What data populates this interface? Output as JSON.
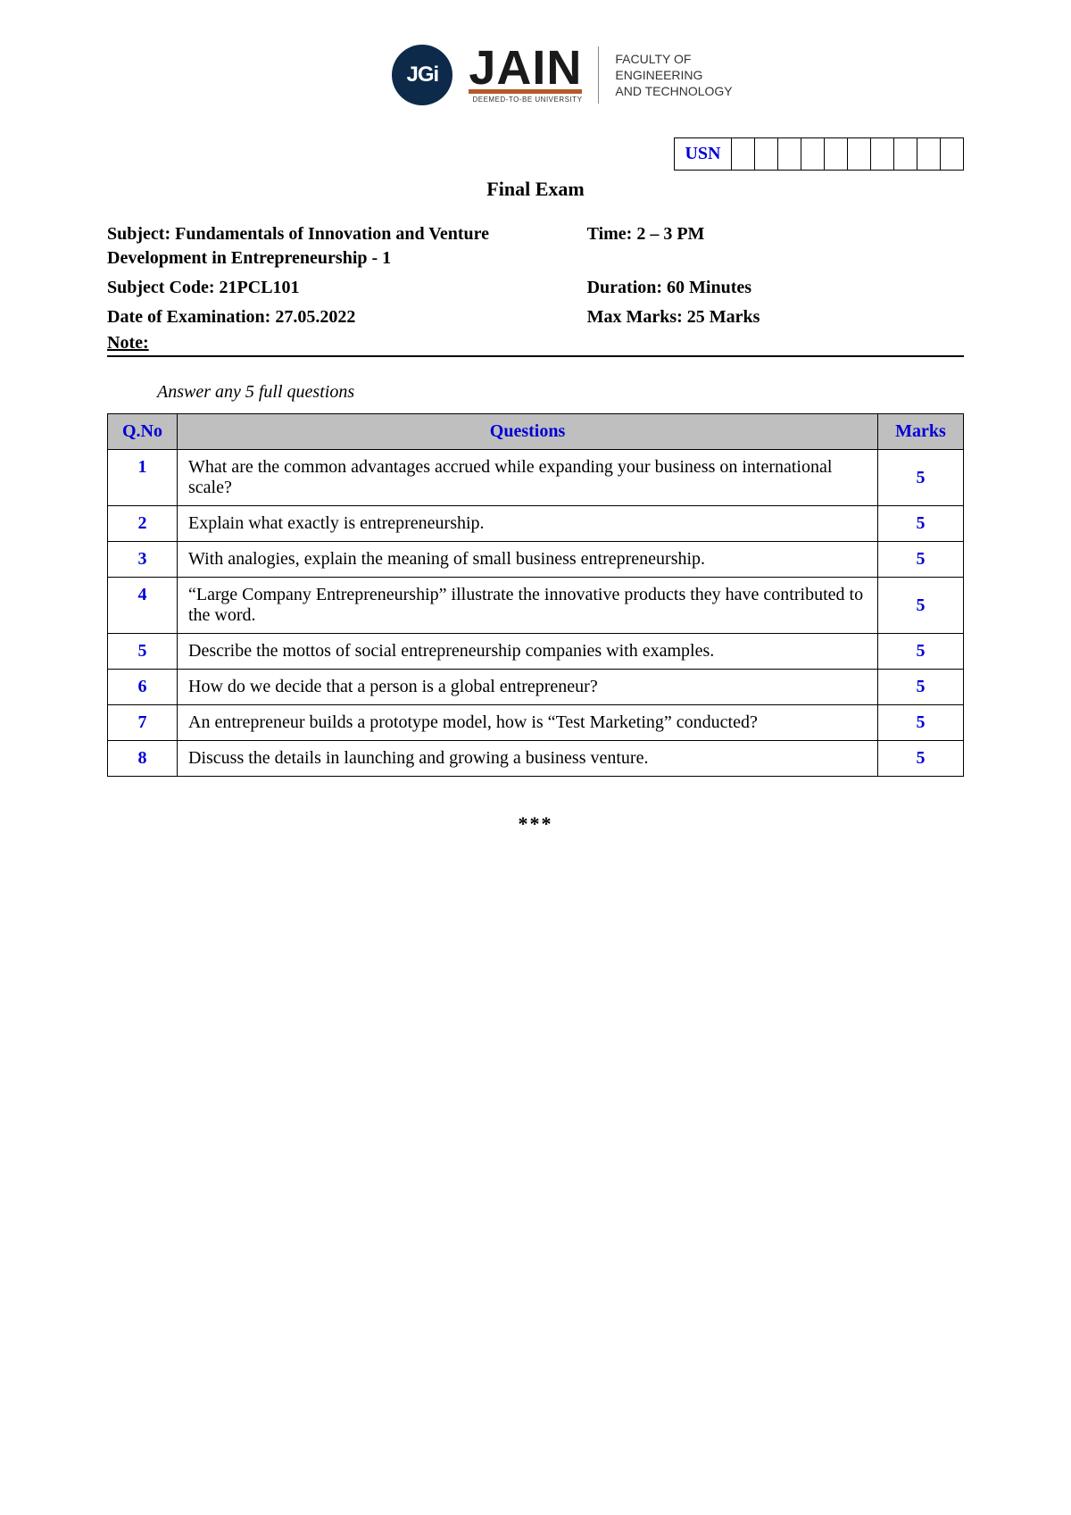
{
  "logo": {
    "jgi": "JGi",
    "jain": "JAIN",
    "jain_sub": "DEEMED-TO-BE UNIVERSITY",
    "faculty_line1": "FACULTY OF",
    "faculty_line2": "ENGINEERING",
    "faculty_line3": "AND TECHNOLOGY"
  },
  "usn_label": "USN",
  "exam_title": "Final Exam",
  "meta": {
    "subject_label": "Subject: Fundamentals of Innovation and Venture Development in Entrepreneurship - 1",
    "time_label": "Time: 2 – 3 PM",
    "subject_code_label": "Subject Code:  21PCL101",
    "duration_label": "Duration: 60 Minutes",
    "date_label": "Date of Examination: 27.05.2022",
    "max_marks_label": "Max Marks: 25 Marks",
    "note_label": "Note:"
  },
  "instruction": "Answer any 5 full questions",
  "table_headers": {
    "qno": "Q.No",
    "questions": "Questions",
    "marks": "Marks"
  },
  "questions": [
    {
      "no": "1",
      "text": "What are the common advantages accrued while expanding your business on international scale?",
      "marks": "5"
    },
    {
      "no": "2",
      "text": "Explain what exactly is entrepreneurship.",
      "marks": "5"
    },
    {
      "no": "3",
      "text": "With analogies, explain the meaning of small business entrepreneurship.",
      "marks": "5"
    },
    {
      "no": "4",
      "text": "“Large Company Entrepreneurship” illustrate the innovative products they have contributed to the word.",
      "marks": "5"
    },
    {
      "no": "5",
      "text": "Describe the mottos of social entrepreneurship companies with examples.",
      "marks": "5"
    },
    {
      "no": "6",
      "text": "How do we decide that a person is a global entrepreneur?",
      "marks": "5"
    },
    {
      "no": "7",
      "text": "An entrepreneur builds a prototype model, how is “Test Marketing” conducted?",
      "marks": "5"
    },
    {
      "no": "8",
      "text": "Discuss the details in launching and growing a business venture.",
      "marks": "5"
    }
  ],
  "end_mark": "***",
  "colors": {
    "accent_blue": "#0000d6",
    "header_bg": "#bfbfbf",
    "logo_navy": "#0d2a4a",
    "logo_orange": "#b55b2a"
  }
}
